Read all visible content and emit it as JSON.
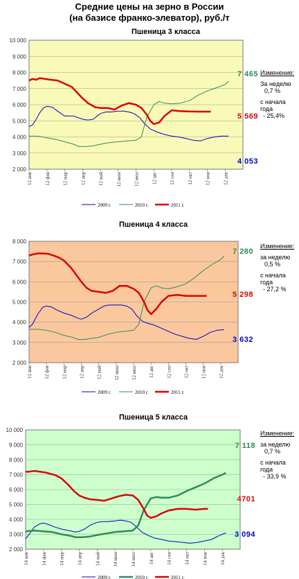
{
  "header": {
    "line1": "Средние цены на зерно в России",
    "line2": "(на базисе франко-элеватор), руб./т"
  },
  "chart_data": [
    {
      "type": "line",
      "title": "Пшеница 3  класса",
      "background": "#fafab8",
      "x_tick_labels": [
        "12 янв",
        "12 фев",
        "12 мар",
        "12 апр",
        "12 май",
        "12 июн",
        "12 июл",
        "12 авг",
        "12 сен",
        "12 окт",
        "12 ноя",
        "12 дек"
      ],
      "ylim": [
        2000,
        10000
      ],
      "y_ticks": [
        "2 000",
        "3 000",
        "4 000",
        "5 000",
        "6 000",
        "7 000",
        "8 000",
        "9 000",
        "10 000"
      ],
      "series": [
        {
          "name": "2009 г.",
          "color": "#0000cc",
          "width": 1,
          "x": [
            0,
            0.2,
            0.4,
            0.6,
            0.8,
            1.0,
            1.3,
            1.6,
            2.0,
            2.5,
            3.0,
            3.3,
            3.6,
            4.0,
            4.3,
            4.6,
            5.0,
            5.3,
            5.6,
            5.9,
            6.2,
            6.5,
            6.8,
            7.2,
            7.6,
            8.0,
            8.4,
            8.8,
            9.2,
            9.6,
            10.0,
            10.4,
            10.8,
            11.2
          ],
          "values": [
            4650,
            4750,
            5100,
            5500,
            5800,
            5900,
            5850,
            5600,
            5300,
            5300,
            5100,
            5050,
            5100,
            5450,
            5550,
            5550,
            5600,
            5600,
            5550,
            5450,
            5200,
            4800,
            4500,
            4300,
            4150,
            4050,
            4000,
            3900,
            3800,
            3750,
            3900,
            4000,
            4050,
            4053
          ]
        },
        {
          "name": "2010 г.",
          "color": "#2e8b57",
          "width": 1,
          "x": [
            0,
            0.5,
            1.0,
            1.5,
            2.0,
            2.5,
            2.8,
            3.2,
            3.6,
            4.0,
            4.5,
            5.0,
            5.5,
            6.0,
            6.3,
            6.6,
            7.0,
            7.3,
            7.6,
            8.0,
            8.5,
            9.0,
            9.5,
            10.0,
            10.5,
            11.0,
            11.2
          ],
          "values": [
            4050,
            4050,
            3950,
            3850,
            3700,
            3550,
            3400,
            3400,
            3450,
            3550,
            3650,
            3700,
            3750,
            3800,
            4000,
            5200,
            6000,
            6200,
            6100,
            6050,
            6100,
            6250,
            6600,
            6850,
            7050,
            7250,
            7465
          ]
        },
        {
          "name": "2011 г.",
          "color": "#dd0000",
          "width": 2.5,
          "x": [
            0,
            0.2,
            0.4,
            0.6,
            0.9,
            1.2,
            1.6,
            2.0,
            2.4,
            2.7,
            3.0,
            3.3,
            3.7,
            4.0,
            4.4,
            4.8,
            5.2,
            5.6,
            6.0,
            6.3,
            6.6,
            6.8,
            7.0,
            7.3,
            7.6,
            8.0,
            8.5,
            9.0,
            9.5,
            10.0,
            10.2
          ],
          "values": [
            7500,
            7600,
            7550,
            7650,
            7600,
            7550,
            7500,
            7300,
            7100,
            6750,
            6400,
            6100,
            5850,
            5800,
            5800,
            5700,
            5950,
            6100,
            6000,
            5800,
            5400,
            5000,
            4800,
            4900,
            5300,
            5650,
            5600,
            5580,
            5570,
            5569,
            5569
          ]
        }
      ],
      "end_labels": [
        {
          "text": "7 465",
          "series": "2010 г."
        },
        {
          "text": "5 569",
          "series": "2011 г."
        },
        {
          "text": "4 053",
          "series": "2009 г."
        }
      ],
      "side_note": {
        "heading": "Изменение:",
        "week_line1": "За  неделю",
        "week_line2": "0,7 %",
        "since_line1": "с начала",
        "since_line2": "года",
        "since_line3": "- 25,4%"
      }
    },
    {
      "type": "line",
      "title": "Пшеница 4 класса",
      "background": "#fbc89e",
      "x_tick_labels": [
        "12 янв",
        "12 фев",
        "12 мар",
        "12 апр",
        "12 май",
        "12 июн",
        "12 июл",
        "12 авг",
        "12 сен",
        "12 окт",
        "12 ноя",
        "12 дек"
      ],
      "ylim": [
        2000,
        8000
      ],
      "y_ticks": [
        "2 000",
        "3 000",
        "4 000",
        "5 000",
        "6 000",
        "7 000",
        "8 000"
      ],
      "series": [
        {
          "name": "2009 г.",
          "color": "#0000cc",
          "width": 1,
          "x": [
            0,
            0.2,
            0.5,
            0.8,
            1.0,
            1.3,
            1.6,
            2.0,
            2.4,
            2.8,
            3.0,
            3.3,
            3.6,
            4.0,
            4.3,
            4.6,
            5.0,
            5.3,
            5.6,
            5.9,
            6.2,
            6.5,
            6.8,
            7.2,
            7.6,
            8.0,
            8.4,
            8.8,
            9.2,
            9.6,
            10.0,
            10.4,
            10.8,
            11.2
          ],
          "values": [
            3750,
            3900,
            4400,
            4750,
            4800,
            4750,
            4600,
            4450,
            4350,
            4200,
            4150,
            4250,
            4450,
            4650,
            4800,
            4850,
            4850,
            4850,
            4800,
            4650,
            4300,
            4050,
            3950,
            3850,
            3700,
            3550,
            3400,
            3300,
            3200,
            3150,
            3300,
            3500,
            3600,
            3632
          ]
        },
        {
          "name": "2010 г.",
          "color": "#2e8b57",
          "width": 1,
          "x": [
            0,
            0.5,
            1.0,
            1.5,
            2.0,
            2.5,
            2.8,
            3.2,
            3.6,
            4.0,
            4.5,
            5.0,
            5.5,
            6.0,
            6.3,
            6.6,
            7.0,
            7.3,
            7.6,
            8.0,
            8.5,
            9.0,
            9.5,
            10.0,
            10.5,
            11.0,
            11.2
          ],
          "values": [
            3650,
            3650,
            3600,
            3500,
            3350,
            3250,
            3150,
            3150,
            3200,
            3250,
            3400,
            3500,
            3550,
            3600,
            3900,
            5000,
            5700,
            5800,
            5700,
            5650,
            5750,
            5900,
            6200,
            6550,
            6850,
            7100,
            7280
          ]
        },
        {
          "name": "2011 г.",
          "color": "#dd0000",
          "width": 2.5,
          "x": [
            0,
            0.2,
            0.5,
            0.8,
            1.1,
            1.4,
            1.7,
            2.0,
            2.4,
            2.7,
            3.0,
            3.3,
            3.6,
            4.0,
            4.4,
            4.8,
            5.2,
            5.6,
            6.0,
            6.3,
            6.6,
            6.8,
            7.0,
            7.3,
            7.6,
            8.0,
            8.5,
            9.0,
            9.5,
            10.0,
            10.2
          ],
          "values": [
            7300,
            7350,
            7400,
            7400,
            7380,
            7300,
            7200,
            7050,
            6700,
            6350,
            6000,
            5700,
            5550,
            5500,
            5450,
            5550,
            5800,
            5800,
            5650,
            5450,
            5000,
            4600,
            4400,
            4650,
            5000,
            5300,
            5350,
            5300,
            5298,
            5298,
            5298
          ]
        }
      ],
      "end_labels": [
        {
          "text": "7 280",
          "series": "2010 г."
        },
        {
          "text": "5 298",
          "series": "2011 г."
        },
        {
          "text": "3 632",
          "series": "2009 г."
        }
      ],
      "side_note": {
        "heading": "Изменение:",
        "week_line1": "за  неделю",
        "week_line2": "0,5 %",
        "since_line1": "с начала",
        "since_line2": "года",
        "since_line3": "- 27,2 %"
      }
    },
    {
      "type": "line",
      "title": "Пшеница 5 класса",
      "background": "#ccffcc",
      "x_tick_labels": [
        "14 янв",
        "14 фев",
        "14 мар",
        "14 апр",
        "14 май",
        "14 июн",
        "14 июл",
        "14 авг",
        "14 сен",
        "14 окт",
        "14 ноя",
        "14 дек"
      ],
      "ylim": [
        2000,
        10000
      ],
      "y_ticks": [
        "2 000",
        "3 000",
        "4 000",
        "5 000",
        "6 000",
        "7 000",
        "8 000",
        "9 000",
        "10 000"
      ],
      "series": [
        {
          "name": "2009 г.",
          "color": "#0000cc",
          "width": 1,
          "x": [
            0,
            0.2,
            0.5,
            0.8,
            1.0,
            1.3,
            1.6,
            2.0,
            2.4,
            2.8,
            3.0,
            3.3,
            3.6,
            4.0,
            4.3,
            4.6,
            5.0,
            5.3,
            5.6,
            5.9,
            6.2,
            6.5,
            6.8,
            7.2,
            7.6,
            8.0,
            8.4,
            8.8,
            9.2,
            9.6,
            10.0,
            10.4,
            10.8,
            11.2
          ],
          "values": [
            2700,
            3000,
            3500,
            3700,
            3750,
            3650,
            3500,
            3350,
            3250,
            3150,
            3200,
            3350,
            3600,
            3800,
            3850,
            3850,
            3900,
            3950,
            3900,
            3800,
            3500,
            3150,
            2950,
            2750,
            2650,
            2550,
            2500,
            2450,
            2400,
            2450,
            2550,
            2650,
            2900,
            3094
          ]
        },
        {
          "name": "2010 г.",
          "color": "#2e8b57",
          "width": 2.5,
          "x": [
            0,
            0.5,
            1.0,
            1.5,
            2.0,
            2.5,
            2.8,
            3.2,
            3.6,
            4.0,
            4.5,
            5.0,
            5.5,
            6.0,
            6.3,
            6.6,
            7.0,
            7.3,
            7.6,
            8.0,
            8.5,
            9.0,
            9.5,
            10.0,
            10.5,
            11.0,
            11.2
          ],
          "values": [
            3200,
            3250,
            3200,
            3150,
            3000,
            2900,
            2800,
            2800,
            2850,
            2950,
            3050,
            3150,
            3200,
            3250,
            3600,
            4600,
            5400,
            5500,
            5450,
            5450,
            5600,
            5900,
            6150,
            6400,
            6750,
            7000,
            7118
          ]
        },
        {
          "name": "2011 г.",
          "color": "#dd0000",
          "width": 2.5,
          "x": [
            0,
            0.2,
            0.5,
            0.8,
            1.1,
            1.4,
            1.7,
            2.0,
            2.4,
            2.7,
            3.0,
            3.3,
            3.6,
            4.0,
            4.4,
            4.8,
            5.2,
            5.6,
            6.0,
            6.3,
            6.6,
            6.8,
            7.0,
            7.3,
            7.6,
            8.0,
            8.5,
            9.0,
            9.5,
            10.0,
            10.2
          ],
          "values": [
            7200,
            7200,
            7250,
            7200,
            7150,
            7050,
            6950,
            6750,
            6300,
            5900,
            5600,
            5450,
            5350,
            5300,
            5250,
            5400,
            5550,
            5650,
            5600,
            5300,
            4700,
            4250,
            4100,
            4200,
            4400,
            4600,
            4700,
            4700,
            4650,
            4701,
            4701
          ]
        }
      ],
      "end_labels": [
        {
          "text": "7 118",
          "series": "2010 г."
        },
        {
          "text": "4701",
          "series": "2011 г."
        },
        {
          "text": "3 094",
          "series": "2009 г."
        }
      ],
      "side_note": {
        "heading": "Изменение:",
        "week_line1": "за  неделю",
        "week_line2": "0,7 %",
        "since_line1": "с начала",
        "since_line2": "года",
        "since_line3": "- 33,9 %"
      }
    }
  ]
}
